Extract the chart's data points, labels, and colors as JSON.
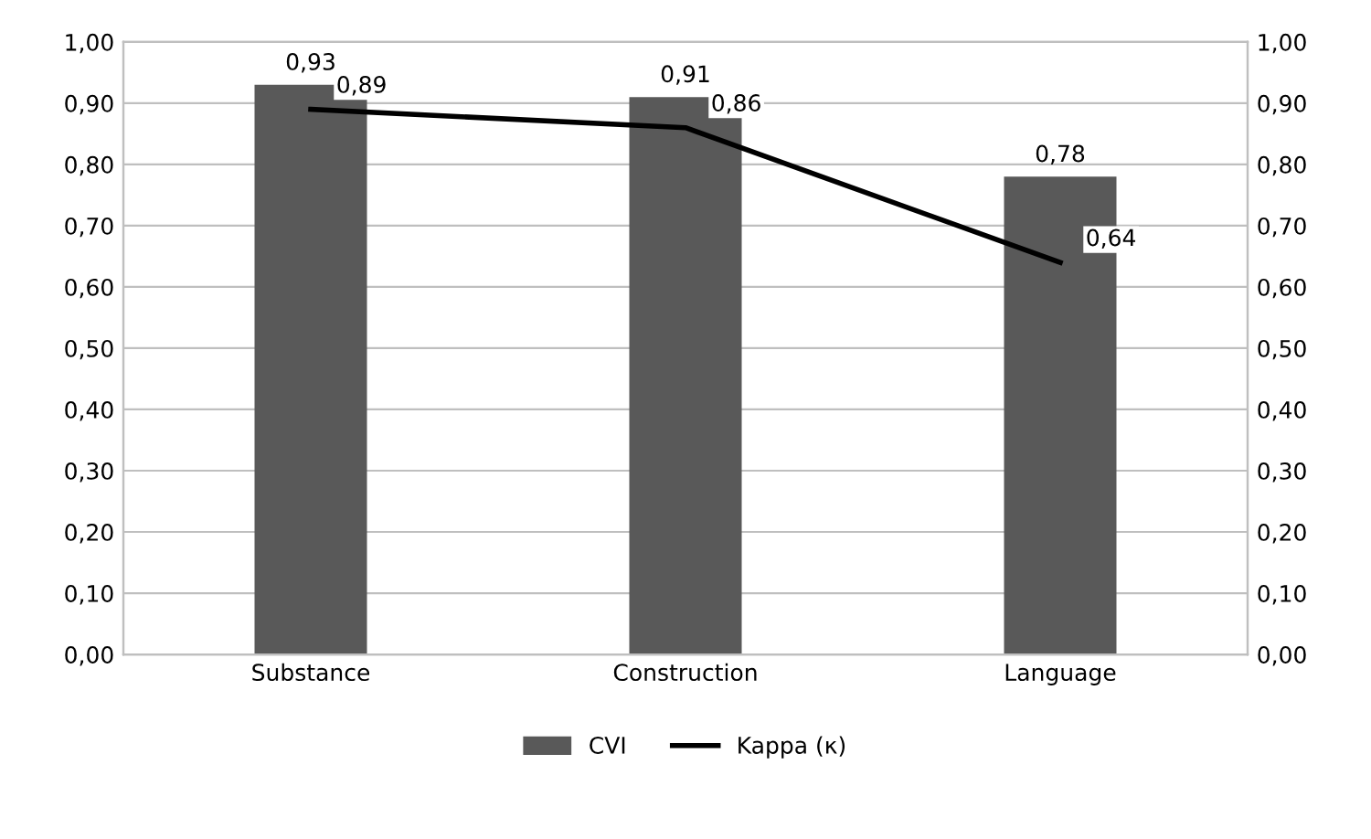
{
  "chart_data": {
    "type": "bar",
    "categories": [
      "Substance",
      "Construction",
      "Language"
    ],
    "series": [
      {
        "name": "CVI",
        "color": "#595959",
        "values": [
          0.93,
          0.91,
          0.78
        ],
        "value_labels": [
          "0,93",
          "0,91",
          "0,78"
        ]
      },
      {
        "name": "Kappa (κ)",
        "type": "line",
        "color": "#000000",
        "values": [
          0.89,
          0.86,
          0.64
        ],
        "value_labels": [
          "0,89",
          "0,86",
          "0,64"
        ]
      }
    ],
    "ylim": [
      0,
      1
    ],
    "yticks": [
      {
        "value": 0,
        "label": "0,00"
      },
      {
        "value": 0.1,
        "label": "0,10"
      },
      {
        "value": 0.2,
        "label": "0,20"
      },
      {
        "value": 0.3,
        "label": "0,30"
      },
      {
        "value": 0.4,
        "label": "0,40"
      },
      {
        "value": 0.5,
        "label": "0,50"
      },
      {
        "value": 0.6,
        "label": "0,60"
      },
      {
        "value": 0.7,
        "label": "0,70"
      },
      {
        "value": 0.8,
        "label": "0,80"
      },
      {
        "value": 0.9,
        "label": "0,90"
      },
      {
        "value": 1,
        "label": "1,00"
      }
    ],
    "y2lim": [
      0,
      1
    ],
    "y2ticks": [
      {
        "value": 0,
        "label": "0,00"
      },
      {
        "value": 0.1,
        "label": "0,10"
      },
      {
        "value": 0.2,
        "label": "0,20"
      },
      {
        "value": 0.3,
        "label": "0,30"
      },
      {
        "value": 0.4,
        "label": "0,40"
      },
      {
        "value": 0.5,
        "label": "0,50"
      },
      {
        "value": 0.6,
        "label": "0,60"
      },
      {
        "value": 0.7,
        "label": "0,70"
      },
      {
        "value": 0.8,
        "label": "0,80"
      },
      {
        "value": 0.9,
        "label": "0,90"
      },
      {
        "value": 1,
        "label": "1,00"
      }
    ],
    "grid": "y",
    "legend": "bottom",
    "marker": "none",
    "line_style": "solid"
  }
}
